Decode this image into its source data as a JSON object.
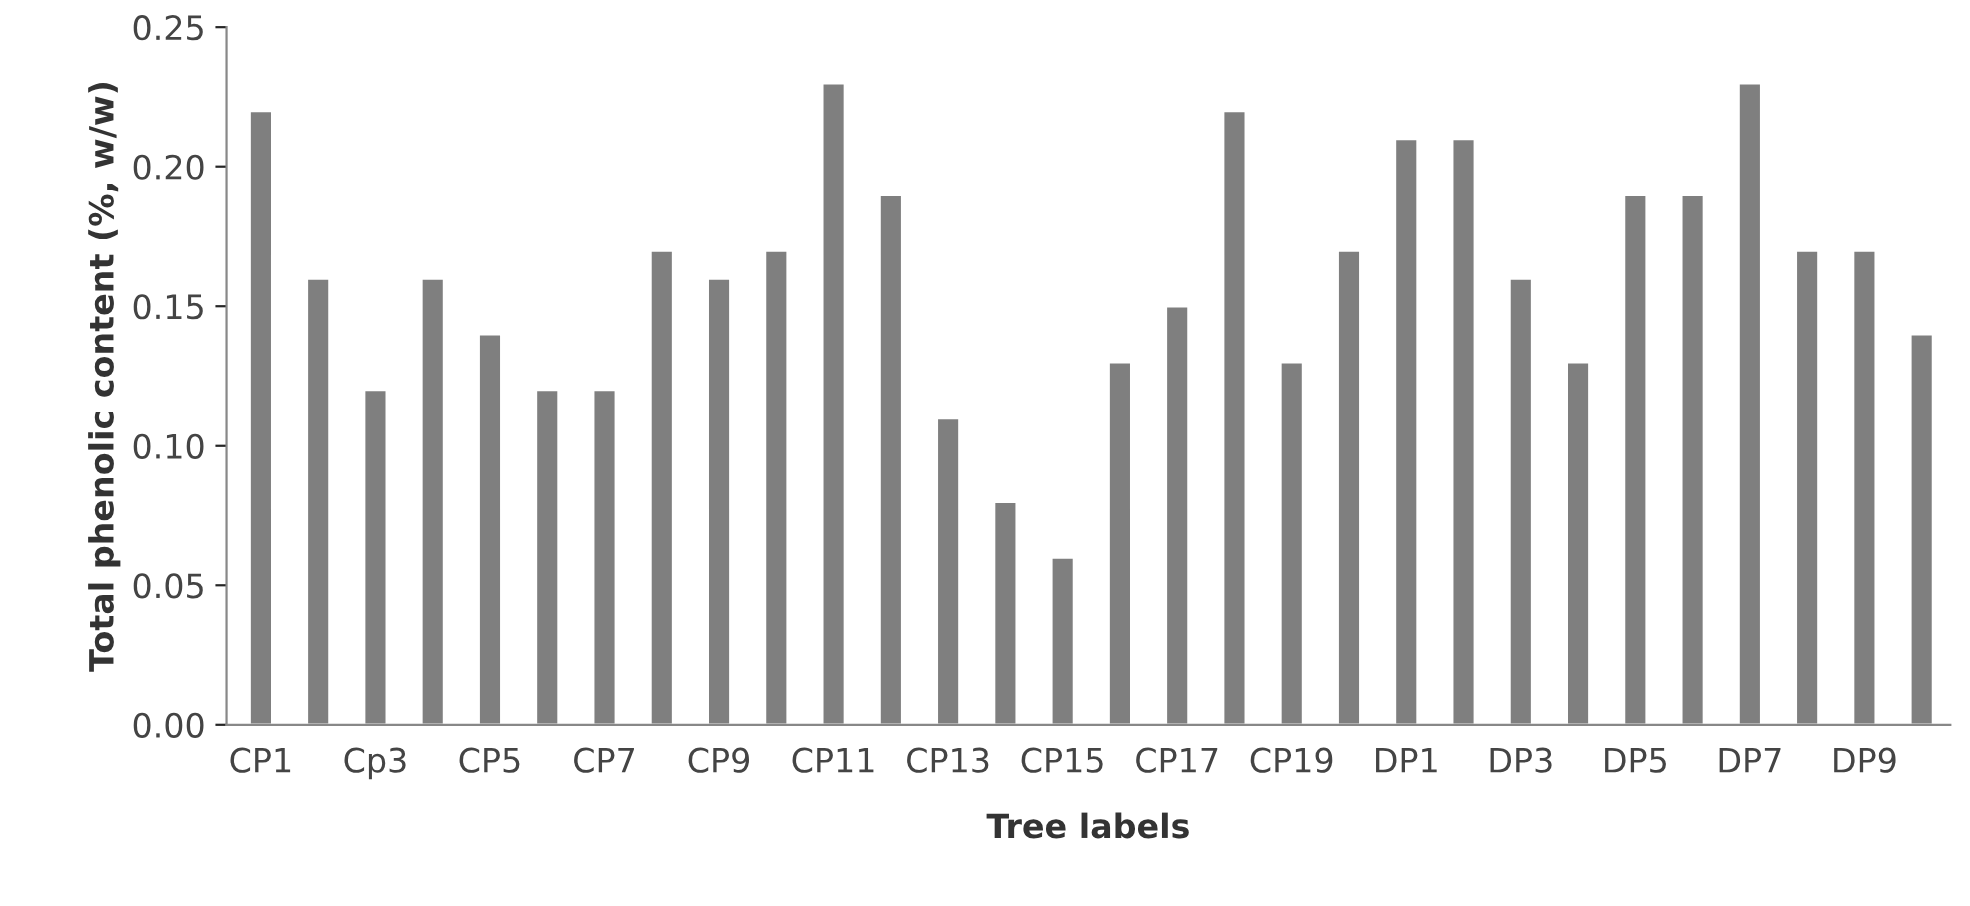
{
  "chart_data": {
    "type": "bar",
    "xlabel": "Tree labels",
    "ylabel": "Total phenolic content (%, w/w)",
    "categories": [
      "CP1",
      null,
      "Cp3",
      null,
      "CP5",
      null,
      "CP7",
      null,
      "CP9",
      null,
      "CP11",
      null,
      "CP13",
      null,
      "CP15",
      null,
      "CP17",
      null,
      "CP19",
      null,
      "DP1",
      null,
      "DP3",
      null,
      "DP5",
      null,
      "DP7",
      null,
      "DP9",
      null
    ],
    "values": [
      0.22,
      0.16,
      0.12,
      0.16,
      0.14,
      0.12,
      0.12,
      0.17,
      0.16,
      0.17,
      0.23,
      0.19,
      0.11,
      0.08,
      0.06,
      0.13,
      0.15,
      0.22,
      0.13,
      0.17,
      0.21,
      0.21,
      0.16,
      0.13,
      0.19,
      0.19,
      0.23,
      0.17,
      0.17,
      0.14
    ],
    "color": "#7f7f7f",
    "ylim": [
      0,
      0.25
    ],
    "yticks": [
      {
        "value": 0,
        "label": "0.00"
      },
      {
        "value": 0.05,
        "label": "0.05"
      },
      {
        "value": 0.1,
        "label": "0.10"
      },
      {
        "value": 0.15,
        "label": "0.15"
      },
      {
        "value": 0.2,
        "label": "0.20"
      },
      {
        "value": 0.25,
        "label": "0.25"
      }
    ],
    "grid": false,
    "legend": false
  }
}
